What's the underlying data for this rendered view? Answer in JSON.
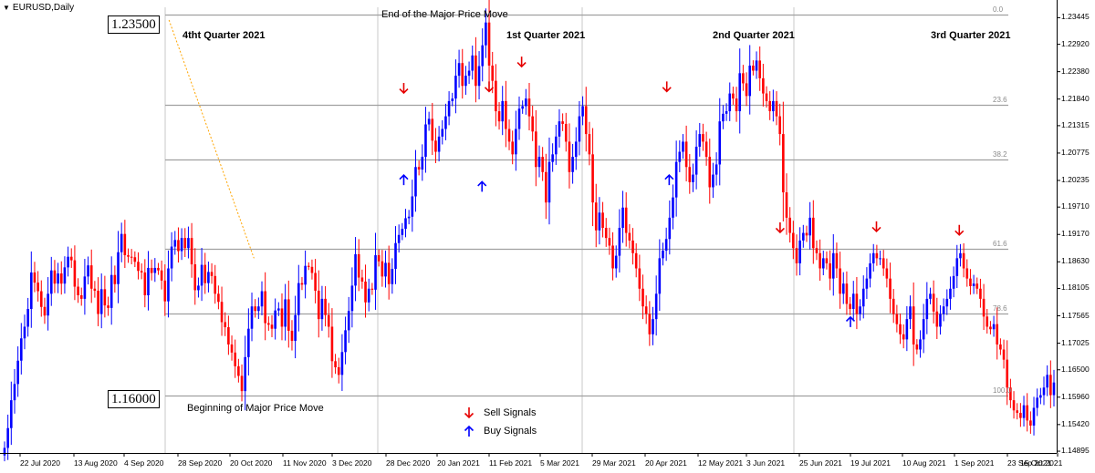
{
  "symbol": "EURUSD,Daily",
  "annotations": {
    "top_price_box": "1.23500",
    "bottom_price_box": "1.16000",
    "end_label": "End of the Major Price Move",
    "begin_label": "Beginning of Major Price Move"
  },
  "quarters": [
    "4tht Quarter 2021",
    "1st Quarter 2021",
    "2nd Quarter 2021",
    "3rd Quarter 2021"
  ],
  "legend": {
    "sell": "Sell Signals",
    "buy": "Buy Signals"
  },
  "colors": {
    "bull": "#0000ff",
    "bear": "#ff0000",
    "sell_arrow": "#e60000",
    "buy_arrow": "#0000ff",
    "fib_line": "#a0a0a0",
    "trend_line": "#ffa500",
    "separator": "#c8c8c8"
  },
  "chart_data": {
    "type": "candlestick",
    "y_axis_ticks": [
      "1.23445",
      "1.22920",
      "1.22380",
      "1.21840",
      "1.21315",
      "1.20775",
      "1.20235",
      "1.19710",
      "1.19170",
      "1.18630",
      "1.18105",
      "1.17565",
      "1.17025",
      "1.16500",
      "1.15960",
      "1.15420",
      "1.14895"
    ],
    "x_axis_ticks": [
      "22 Jul 2020",
      "13 Aug 2020",
      "4 Sep 2020",
      "28 Sep 2020",
      "20 Oct 2020",
      "11 Nov 2020",
      "3 Dec 2020",
      "28 Dec 2020",
      "20 Jan 2021",
      "11 Feb 2021",
      "5 Mar 2021",
      "29 Mar 2021",
      "20 Apr 2021",
      "12 May 2021",
      "3 Jun 2021",
      "25 Jun 2021",
      "19 Jul 2021",
      "10 Aug 2021",
      "1 Sep 2021",
      "23 Sep 2021",
      "15 Oct 2021"
    ],
    "ylim": [
      1.1486,
      1.2365
    ],
    "fib_levels": [
      {
        "label": "0.0",
        "price": 1.235
      },
      {
        "label": "23.6",
        "price": 1.2173
      },
      {
        "label": "38.2",
        "price": 1.2064
      },
      {
        "label": "61.6",
        "price": 1.1888
      },
      {
        "label": "78.6",
        "price": 1.1761
      },
      {
        "label": "100.0",
        "price": 1.16
      }
    ],
    "trend_line": {
      "from": {
        "date": "24 Sep 2020",
        "price": 1.234
      },
      "to": {
        "date": "30 Oct 2020",
        "price": 1.187
      }
    },
    "sell_signals": [
      {
        "date": "5 Jan 2021",
        "price": 1.2205
      },
      {
        "date": "11 Feb 2021",
        "price": 1.2208
      },
      {
        "date": "25 Feb 2021",
        "price": 1.2257
      },
      {
        "date": "29 Apr 2021",
        "price": 1.2208
      },
      {
        "date": "17 Jun 2021",
        "price": 1.193
      },
      {
        "date": "30 Jul 2021",
        "price": 1.1932
      },
      {
        "date": "3 Sep 2021",
        "price": 1.1925
      }
    ],
    "buy_signals": [
      {
        "date": "5 Jan 2021",
        "price": 1.2025
      },
      {
        "date": "8 Feb 2021",
        "price": 1.2012
      },
      {
        "date": "30 Apr 2021",
        "price": 1.2025
      },
      {
        "date": "19 Jul 2021",
        "price": 1.1745
      }
    ],
    "ohlc_closes": [
      1.1496,
      1.1535,
      1.159,
      1.1622,
      1.1668,
      1.1712,
      1.1735,
      1.177,
      1.1842,
      1.1822,
      1.1805,
      1.1774,
      1.1757,
      1.18,
      1.1846,
      1.182,
      1.184,
      1.182,
      1.1852,
      1.1873,
      1.1866,
      1.1814,
      1.1797,
      1.179,
      1.1834,
      1.1856,
      1.181,
      1.1806,
      1.176,
      1.1809,
      1.1777,
      1.1772,
      1.1837,
      1.1819,
      1.1882,
      1.1918,
      1.1876,
      1.1873,
      1.1872,
      1.1863,
      1.1845,
      1.1842,
      1.1797,
      1.1851,
      1.1841,
      1.1851,
      1.1846,
      1.1826,
      1.1785,
      1.185,
      1.1893,
      1.1906,
      1.1884,
      1.191,
      1.189,
      1.191,
      1.1858,
      1.1807,
      1.1816,
      1.1857,
      1.1821,
      1.1843,
      1.1835,
      1.18,
      1.1784,
      1.1744,
      1.1734,
      1.17,
      1.1684,
      1.1657,
      1.1638,
      1.1608,
      1.1675,
      1.1731,
      1.1775,
      1.1766,
      1.1775,
      1.1805,
      1.1742,
      1.1739,
      1.1731,
      1.1767,
      1.1771,
      1.1735,
      1.1789,
      1.1727,
      1.1707,
      1.1758,
      1.1821,
      1.1818,
      1.1855,
      1.1853,
      1.1841,
      1.1806,
      1.175,
      1.179,
      1.1758,
      1.1735,
      1.1667,
      1.1655,
      1.164,
      1.1685,
      1.1728,
      1.1766,
      1.1816,
      1.1878,
      1.1832,
      1.1824,
      1.1783,
      1.181,
      1.1808,
      1.1876,
      1.1864,
      1.1834,
      1.1861,
      1.1819,
      1.1849,
      1.19,
      1.1916,
      1.1928,
      1.1949,
      1.1952,
      1.1992,
      1.205,
      1.2045,
      1.207,
      1.2134,
      1.2145,
      1.2102,
      1.208,
      1.211,
      1.2125,
      1.215,
      1.218,
      1.2185,
      1.223,
      1.2255,
      1.221,
      1.223,
      1.224,
      1.227,
      1.221,
      1.2249,
      1.229,
      1.2335,
      1.225,
      1.222,
      1.216,
      1.214,
      1.218,
      1.2125,
      1.21,
      1.2075,
      1.2125,
      1.2165,
      1.217,
      1.2185,
      1.215,
      1.212,
      1.205,
      1.207,
      1.204,
      1.198,
      1.206,
      1.2075,
      1.211,
      1.214,
      1.2135,
      1.21,
      1.204,
      1.207,
      1.21,
      1.215,
      1.217,
      1.2115,
      1.2075,
      1.198,
      1.1925,
      1.196,
      1.193,
      1.191,
      1.1895,
      1.185,
      1.1875,
      1.193,
      1.197,
      1.192,
      1.1905,
      1.188,
      1.185,
      1.181,
      1.1775,
      1.176,
      1.172,
      1.175,
      1.18,
      1.187,
      1.1885,
      1.1908,
      1.195,
      1.199,
      1.206,
      1.208,
      1.21,
      1.205,
      1.202,
      1.2035,
      1.209,
      1.2115,
      1.21,
      1.207,
      1.201,
      1.2035,
      1.2055,
      1.214,
      1.2155,
      1.216,
      1.2195,
      1.2185,
      1.216,
      1.2235,
      1.2215,
      1.219,
      1.225,
      1.224,
      1.226,
      1.2225,
      1.2195,
      1.218,
      1.216,
      1.218,
      1.215,
      1.2115,
      1.2,
      1.195,
      1.192,
      1.189,
      1.186,
      1.1905,
      1.192,
      1.1915,
      1.195,
      1.189,
      1.188,
      1.185,
      1.187,
      1.186,
      1.183,
      1.188,
      1.185,
      1.18,
      1.182,
      1.178,
      1.177,
      1.18,
      1.176,
      1.1775,
      1.181,
      1.183,
      1.186,
      1.188,
      1.187,
      1.187,
      1.185,
      1.183,
      1.179,
      1.176,
      1.174,
      1.172,
      1.171,
      1.175,
      1.1775,
      1.17,
      1.169,
      1.171,
      1.175,
      1.179,
      1.18,
      1.1765,
      1.1735,
      1.176,
      1.1775,
      1.179,
      1.181,
      1.1835,
      1.187,
      1.188,
      1.185,
      1.183,
      1.1815,
      1.182,
      1.181,
      1.179,
      1.1755,
      1.1735,
      1.173,
      1.174,
      1.17,
      1.169,
      1.167,
      1.1615,
      1.159,
      1.157,
      1.1565,
      1.1555,
      1.158,
      1.155,
      1.154,
      1.1575,
      1.1595,
      1.16,
      1.1615,
      1.164,
      1.16,
      1.1625
    ]
  }
}
